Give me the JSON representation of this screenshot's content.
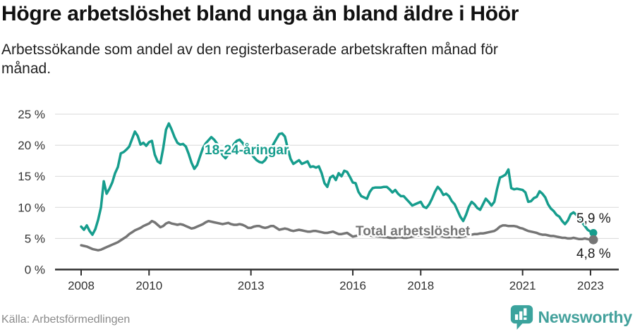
{
  "header": {
    "title": "Högre arbetslöshet bland unga än bland äldre i Höör",
    "subtitle_lines": [
      "Arbetssökande som andel av den registerbaserade arbetskraften månad för",
      "månad."
    ]
  },
  "footer": {
    "source": "Källa: Arbetsförmedlingen",
    "logo_text": "Newsworthy",
    "logo_icon": "bar-chart-bubble-icon"
  },
  "colors": {
    "youth_line": "#169d8d",
    "total_line": "#757575",
    "grid": "#d8d8d8",
    "axis": "#2f2f2f",
    "axis_text": "#333333",
    "end_label_text": "#1a1a1a",
    "logo_teal": "#3ba39d"
  },
  "chart_data": {
    "type": "line",
    "x_unit": "decimal_year",
    "x_start": 2008.0,
    "x_step_years": 0.083333,
    "x_end_approx": 2023.08,
    "xlim": [
      2007.2,
      2023.8
    ],
    "ylim": [
      0,
      25
    ],
    "grid": "horizontal",
    "y_ticks": [
      {
        "value": 0,
        "label": "0 %"
      },
      {
        "value": 5,
        "label": "5 %"
      },
      {
        "value": 10,
        "label": "10 %"
      },
      {
        "value": 15,
        "label": "15 %"
      },
      {
        "value": 20,
        "label": "20 %"
      },
      {
        "value": 25,
        "label": "25 %"
      }
    ],
    "x_ticks": [
      {
        "value": 2008,
        "label": "2008"
      },
      {
        "value": 2010,
        "label": "2010"
      },
      {
        "value": 2013,
        "label": "2013"
      },
      {
        "value": 2016,
        "label": "2016"
      },
      {
        "value": 2018,
        "label": "2018"
      },
      {
        "value": 2021,
        "label": "2021"
      },
      {
        "value": 2023,
        "label": "2023"
      }
    ],
    "series": [
      {
        "id": "youth",
        "name": "18-24-åringar",
        "color": "#169d8d",
        "end_label": "5,9 %",
        "end_value": 5.9,
        "values": [
          6.9,
          6.4,
          7.1,
          6.2,
          5.6,
          6.5,
          8.0,
          10.0,
          14.2,
          12.2,
          13.0,
          14.0,
          15.5,
          16.5,
          18.7,
          18.9,
          19.3,
          19.8,
          21.0,
          22.2,
          21.5,
          20.1,
          20.4,
          19.9,
          20.5,
          20.7,
          18.5,
          17.4,
          17.1,
          19.5,
          22.5,
          23.5,
          22.5,
          21.3,
          20.4,
          20.1,
          20.2,
          19.8,
          18.6,
          17.2,
          16.2,
          16.8,
          18.2,
          19.5,
          20.3,
          20.8,
          21.3,
          20.9,
          20.3,
          19.3,
          18.4,
          17.9,
          18.5,
          19.4,
          20.2,
          20.7,
          20.9,
          20.4,
          19.8,
          19.2,
          18.7,
          18.1,
          17.6,
          17.3,
          17.2,
          17.6,
          18.4,
          19.3,
          20.2,
          21.0,
          21.8,
          21.9,
          21.4,
          19.5,
          17.8,
          17.0,
          17.3,
          17.6,
          17.0,
          17.2,
          17.4,
          16.5,
          16.6,
          16.4,
          16.6,
          15.5,
          13.9,
          13.3,
          14.8,
          15.1,
          14.4,
          15.5,
          15.0,
          15.9,
          15.7,
          14.9,
          14.0,
          13.9,
          12.5,
          11.8,
          11.6,
          11.4,
          12.5,
          13.1,
          13.2,
          13.2,
          13.2,
          13.3,
          13.3,
          12.9,
          12.4,
          12.8,
          12.2,
          11.8,
          11.8,
          11.3,
          10.8,
          10.3,
          10.5,
          10.7,
          10.9,
          10.1,
          9.9,
          10.5,
          11.4,
          12.5,
          13.3,
          12.8,
          12.0,
          12.2,
          11.8,
          11.0,
          10.5,
          9.5,
          8.5,
          7.8,
          8.8,
          10.1,
          10.9,
          10.5,
          9.9,
          9.6,
          10.5,
          11.4,
          10.9,
          10.3,
          10.9,
          13.0,
          14.8,
          15.0,
          15.3,
          16.1,
          13.1,
          12.9,
          13.0,
          12.9,
          12.8,
          12.4,
          10.9,
          11.0,
          11.5,
          11.7,
          12.6,
          12.2,
          11.6,
          10.5,
          9.8,
          9.4,
          8.8,
          8.5,
          7.8,
          7.3,
          7.9,
          8.9,
          9.2,
          8.8,
          8.2,
          7.6,
          7.0,
          6.4,
          6.1,
          5.9
        ]
      },
      {
        "id": "total",
        "name": "Total arbetslöshet",
        "color": "#757575",
        "end_label": "4,8 %",
        "end_value": 4.8,
        "values": [
          3.9,
          3.8,
          3.7,
          3.5,
          3.3,
          3.2,
          3.1,
          3.2,
          3.4,
          3.6,
          3.8,
          4.0,
          4.2,
          4.4,
          4.7,
          5.0,
          5.3,
          5.7,
          6.0,
          6.3,
          6.5,
          6.7,
          7.0,
          7.2,
          7.4,
          7.8,
          7.6,
          7.2,
          6.8,
          7.0,
          7.4,
          7.6,
          7.4,
          7.3,
          7.2,
          7.3,
          7.2,
          7.0,
          6.8,
          6.6,
          6.7,
          6.9,
          7.1,
          7.3,
          7.6,
          7.8,
          7.7,
          7.6,
          7.5,
          7.4,
          7.3,
          7.4,
          7.5,
          7.3,
          7.2,
          7.2,
          7.3,
          7.2,
          7.0,
          6.7,
          6.7,
          6.9,
          7.0,
          7.0,
          6.8,
          6.7,
          6.8,
          7.0,
          7.0,
          6.7,
          6.4,
          6.5,
          6.6,
          6.5,
          6.3,
          6.2,
          6.3,
          6.4,
          6.3,
          6.2,
          6.1,
          6.1,
          6.2,
          6.2,
          6.1,
          6.0,
          5.9,
          5.9,
          6.0,
          6.1,
          5.9,
          5.7,
          5.7,
          5.8,
          5.9,
          5.6,
          5.3,
          5.4,
          5.5,
          5.6,
          5.7,
          5.6,
          5.5,
          5.4,
          5.4,
          5.3,
          5.3,
          5.2,
          5.2,
          5.1,
          5.1,
          5.1,
          5.2,
          5.2,
          5.1,
          5.1,
          5.2,
          5.3,
          5.4,
          5.5,
          5.5,
          5.4,
          5.3,
          5.2,
          5.2,
          5.3,
          5.4,
          5.4,
          5.3,
          5.2,
          5.2,
          5.3,
          5.3,
          5.2,
          5.2,
          5.3,
          5.4,
          5.5,
          5.6,
          5.7,
          5.7,
          5.8,
          5.8,
          5.9,
          6.0,
          6.1,
          6.2,
          6.5,
          6.9,
          7.1,
          7.1,
          7.0,
          7.0,
          7.0,
          6.9,
          6.7,
          6.6,
          6.4,
          6.2,
          6.1,
          6.0,
          5.9,
          5.7,
          5.6,
          5.6,
          5.5,
          5.4,
          5.4,
          5.3,
          5.2,
          5.1,
          5.1,
          5.0,
          5.0,
          5.1,
          5.0,
          4.9,
          4.9,
          5.0,
          4.9,
          4.8,
          4.8
        ]
      }
    ]
  }
}
